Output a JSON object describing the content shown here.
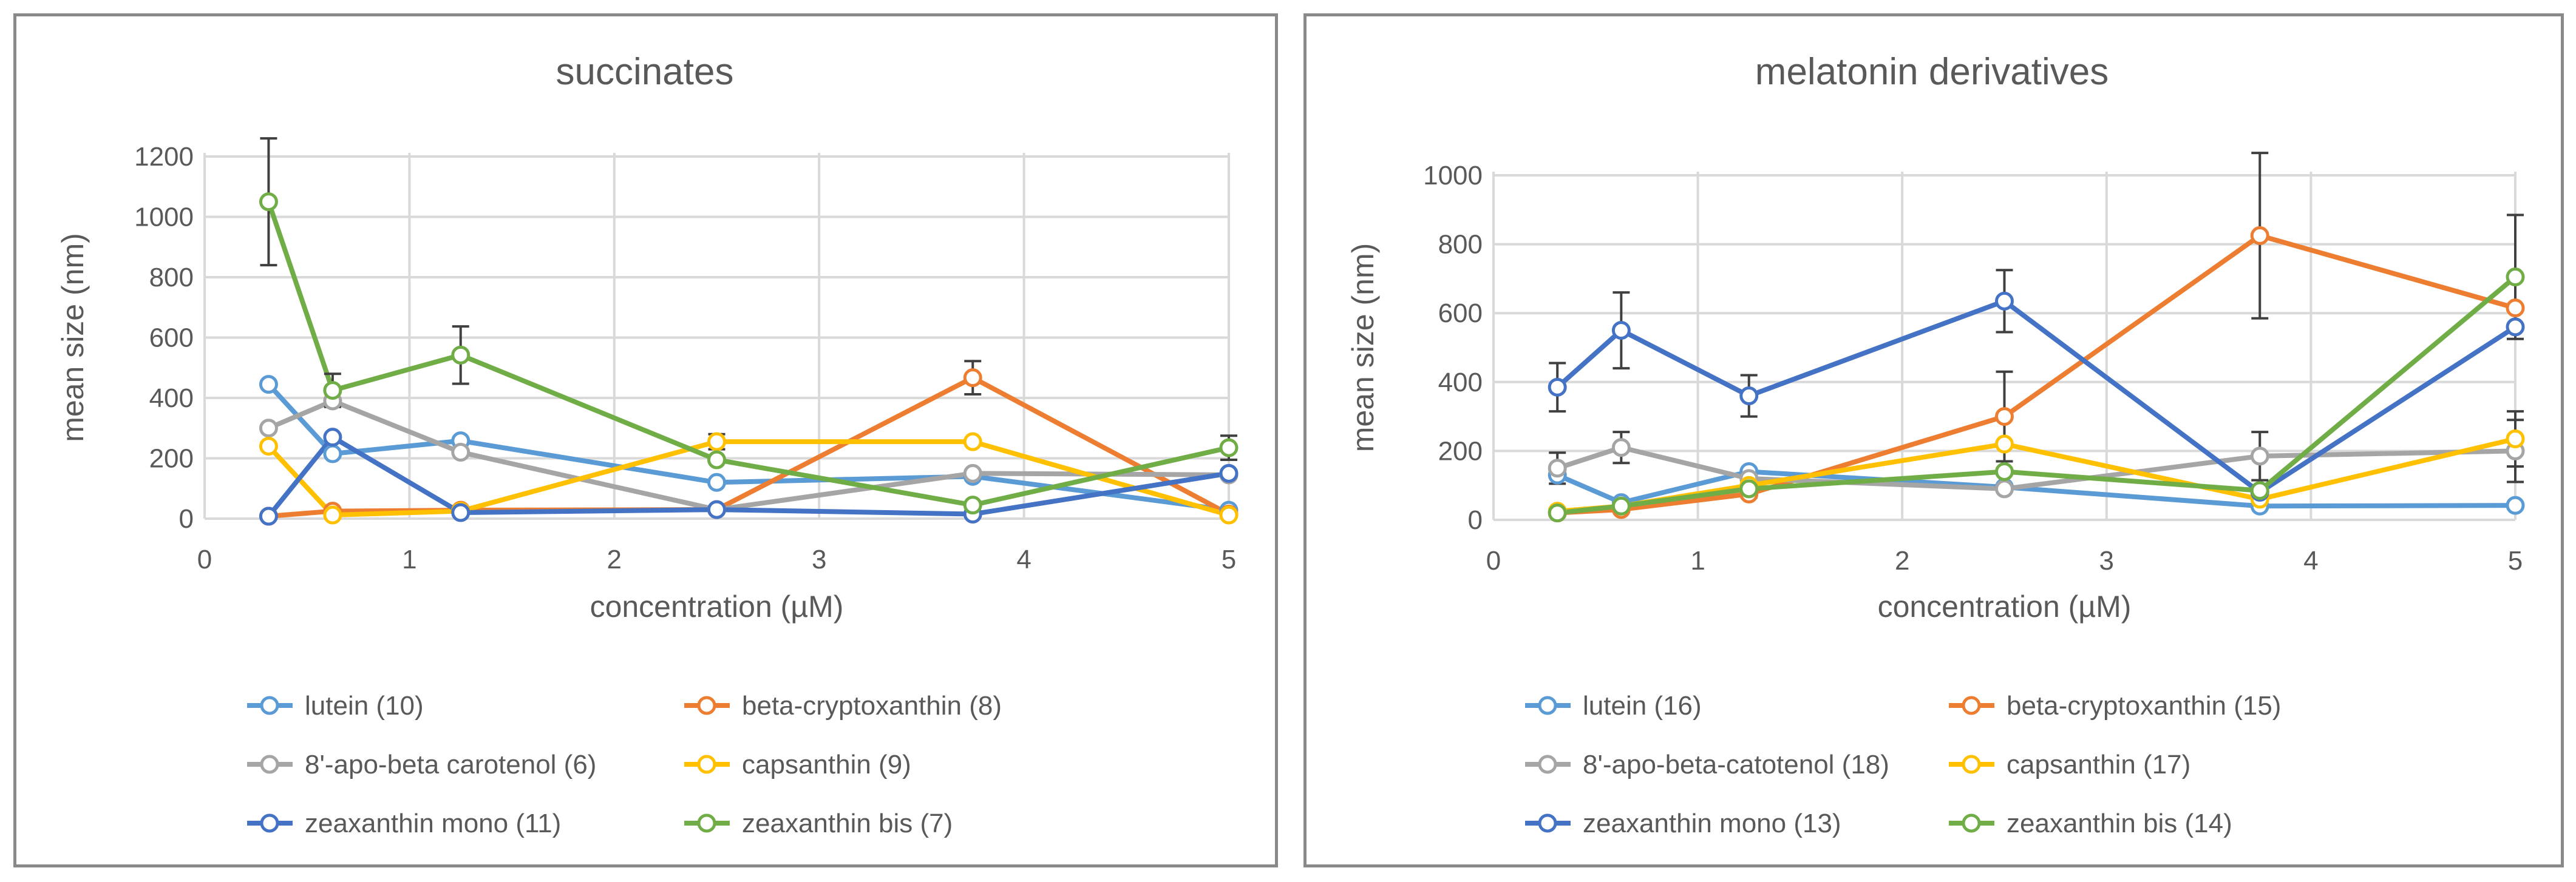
{
  "charts": [
    {
      "type": "line",
      "title": "succinates",
      "xlabel": "concentration (µM)",
      "ylabel": "mean size (nm)",
      "xlim": [
        0,
        5
      ],
      "ylim": [
        0,
        1200
      ],
      "xticks": [
        0,
        1,
        2,
        3,
        4,
        5
      ],
      "yticks": [
        0,
        200,
        400,
        600,
        800,
        1000,
        1200
      ],
      "x": [
        0.3125,
        0.625,
        1.25,
        2.5,
        3.75,
        5
      ],
      "series": [
        {
          "name": "lutein (10)",
          "color": "#5B9BD5",
          "values": [
            445,
            215,
            258,
            120,
            140,
            28
          ],
          "errors": [
            0,
            0,
            0,
            0,
            0,
            0
          ]
        },
        {
          "name": "beta-cryptoxanthin (8)",
          "color": "#ED7D31",
          "values": [
            8,
            25,
            28,
            30,
            467,
            15
          ],
          "errors": [
            0,
            0,
            0,
            0,
            55,
            0
          ]
        },
        {
          "name": "8'-apo-beta carotenol (6)",
          "color": "#A5A5A5",
          "values": [
            300,
            390,
            220,
            30,
            150,
            145
          ],
          "errors": [
            0,
            0,
            0,
            0,
            0,
            0
          ]
        },
        {
          "name": "capsanthin (9)",
          "color": "#FFC000",
          "values": [
            240,
            12,
            25,
            255,
            255,
            12
          ],
          "errors": [
            0,
            0,
            0,
            25,
            0,
            0
          ]
        },
        {
          "name": "zeaxanthin mono (11)",
          "color": "#4472C4",
          "values": [
            8,
            270,
            20,
            30,
            15,
            150
          ],
          "errors": [
            0,
            0,
            0,
            0,
            0,
            0
          ]
        },
        {
          "name": "zeaxanthin bis (7)",
          "color": "#70AD47",
          "values": [
            1050,
            425,
            542,
            195,
            45,
            235
          ],
          "errors": [
            210,
            55,
            95,
            0,
            0,
            40
          ]
        }
      ],
      "grid": true,
      "legend": "bottom"
    },
    {
      "type": "line",
      "title": "melatonin derivatives",
      "xlabel": "concentration (µM)",
      "ylabel": "mean size (nm)",
      "xlim": [
        0,
        5
      ],
      "ylim": [
        0,
        1000
      ],
      "xticks": [
        0,
        1,
        2,
        3,
        4,
        5
      ],
      "yticks": [
        0,
        200,
        400,
        600,
        800,
        1000
      ],
      "x": [
        0.3125,
        0.625,
        1.25,
        2.5,
        3.75,
        5
      ],
      "series": [
        {
          "name": "lutein (16)",
          "color": "#5B9BD5",
          "values": [
            130,
            50,
            140,
            95,
            40,
            42
          ],
          "errors": [
            0,
            0,
            0,
            0,
            0,
            0
          ]
        },
        {
          "name": "beta-cryptoxanthin (15)",
          "color": "#ED7D31",
          "values": [
            20,
            30,
            75,
            300,
            825,
            615
          ],
          "errors": [
            0,
            0,
            0,
            130,
            240,
            0
          ]
        },
        {
          "name": "8'-apo-beta-catotenol (18)",
          "color": "#A5A5A5",
          "values": [
            150,
            210,
            120,
            90,
            185,
            200
          ],
          "errors": [
            45,
            45,
            0,
            0,
            70,
            90
          ]
        },
        {
          "name": "capsanthin (17)",
          "color": "#FFC000",
          "values": [
            25,
            40,
            100,
            220,
            60,
            235
          ],
          "errors": [
            0,
            0,
            35,
            0,
            0,
            80
          ]
        },
        {
          "name": "zeaxanthin mono (13)",
          "color": "#4472C4",
          "values": [
            385,
            550,
            360,
            635,
            80,
            560
          ],
          "errors": [
            70,
            110,
            60,
            90,
            0,
            0
          ]
        },
        {
          "name": "zeaxanthin bis (14)",
          "color": "#70AD47",
          "values": [
            20,
            40,
            90,
            140,
            85,
            705
          ],
          "errors": [
            0,
            0,
            0,
            0,
            0,
            180
          ]
        }
      ],
      "grid": true,
      "legend": "bottom"
    }
  ]
}
